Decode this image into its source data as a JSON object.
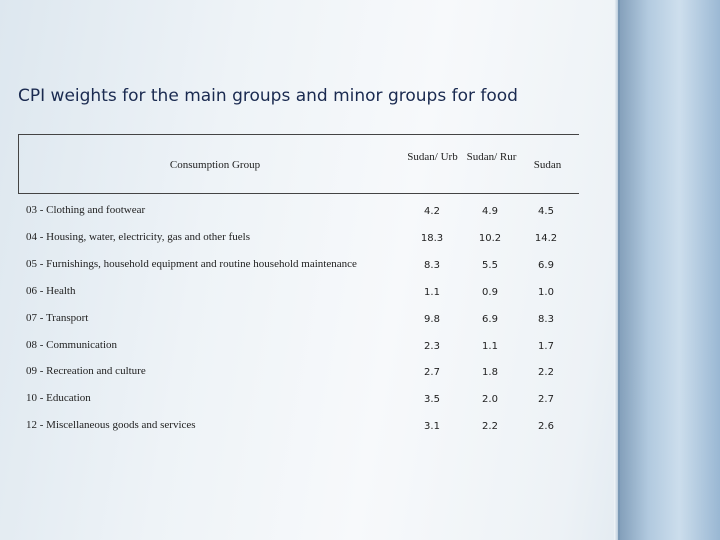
{
  "title": "CPI weights for the main groups and minor groups for food",
  "table": {
    "header": [
      "Consumption Group",
      "Sudan/ Urb",
      "Sudan/ Rur",
      "Sudan"
    ],
    "rows": [
      [
        "03 - Clothing and footwear",
        "4.2",
        "4.9",
        "4.5"
      ],
      [
        "04 - Housing, water, electricity, gas and other fuels",
        "18.3",
        "10.2",
        "14.2"
      ],
      [
        "05 - Furnishings, household equipment and routine household maintenance",
        "8.3",
        "5.5",
        "6.9"
      ],
      [
        "06 - Health",
        "1.1",
        "0.9",
        "1.0"
      ],
      [
        "07 - Transport",
        "9.8",
        "6.9",
        "8.3"
      ],
      [
        "08 - Communication",
        "2.3",
        "1.1",
        "1.7"
      ],
      [
        "09 - Recreation and culture",
        "2.7",
        "1.8",
        "2.2"
      ],
      [
        "10 - Education",
        "3.5",
        "2.0",
        "2.7"
      ],
      [
        "12 - Miscellaneous goods and services",
        "3.1",
        "2.2",
        "2.6"
      ]
    ]
  }
}
